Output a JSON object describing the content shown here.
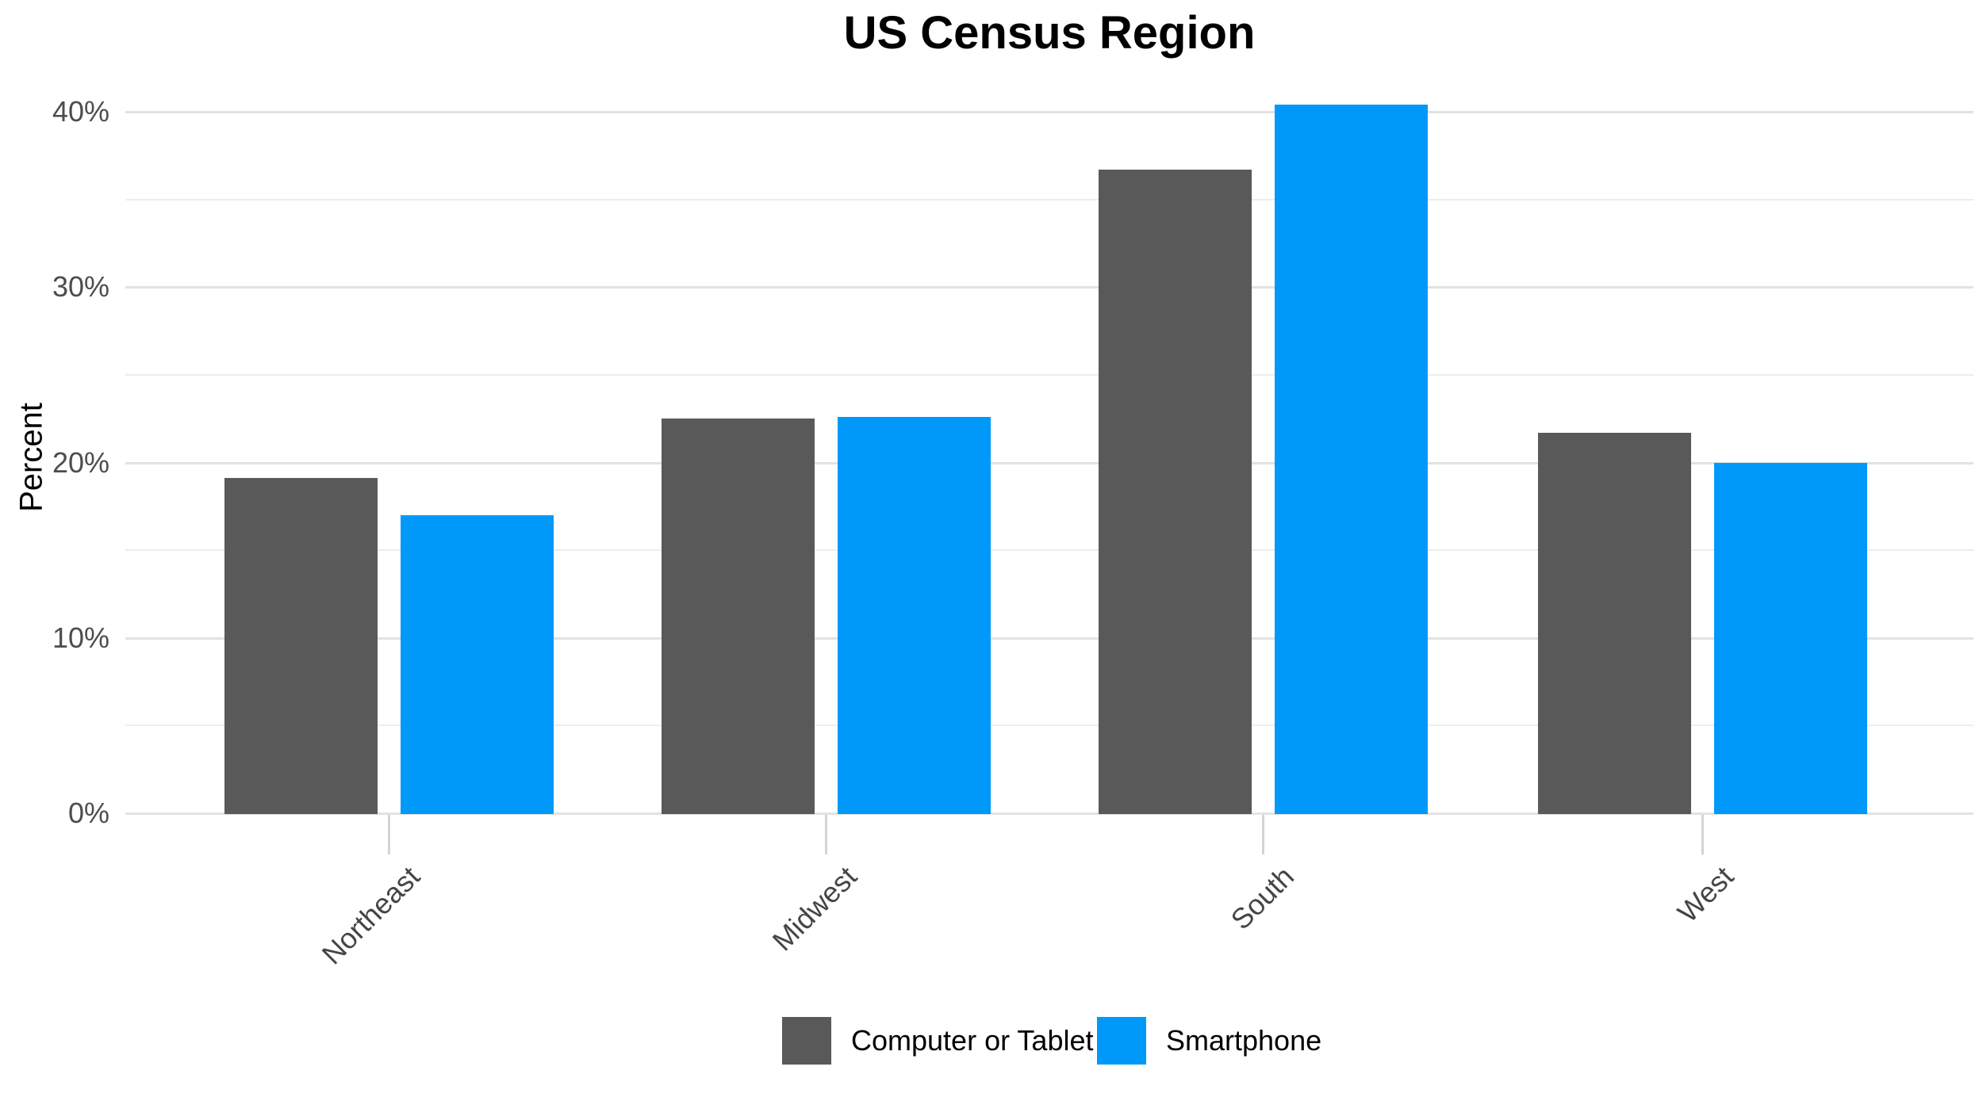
{
  "title": "US Census Region",
  "y_axis": {
    "label": "Percent",
    "ticks": [
      {
        "value": 0,
        "label": "0%"
      },
      {
        "value": 10,
        "label": "10%"
      },
      {
        "value": 20,
        "label": "20%"
      },
      {
        "value": 30,
        "label": "30%"
      },
      {
        "value": 40,
        "label": "40%"
      }
    ],
    "minor_tick_values": [
      5,
      15,
      25,
      35
    ]
  },
  "legend": {
    "position": "bottom",
    "items": [
      {
        "label": "Computer or Tablet",
        "color": "#595959"
      },
      {
        "label": "Smartphone",
        "color": "#0099fa"
      }
    ]
  },
  "colors": {
    "gridline_major": "#e2e2e2",
    "gridline_minor": "#ededed",
    "axis_tick": "#d4d4d4",
    "tick_label_text": "#4d4d4d",
    "category_label_text": "#454545"
  },
  "chart_data": {
    "type": "bar",
    "title": "US Census Region",
    "xlabel": "",
    "ylabel": "Percent",
    "categories": [
      "Northeast",
      "Midwest",
      "South",
      "West"
    ],
    "series": [
      {
        "name": "Computer or Tablet",
        "color": "#595959",
        "values": [
          19.1,
          22.5,
          36.7,
          21.7
        ]
      },
      {
        "name": "Smartphone",
        "color": "#0099fa",
        "values": [
          17.0,
          22.6,
          40.4,
          20.0
        ]
      }
    ],
    "ylim": [
      0,
      42.3
    ],
    "grid": "horizontal major and minor, no vertical minor",
    "legend_position": "bottom"
  }
}
